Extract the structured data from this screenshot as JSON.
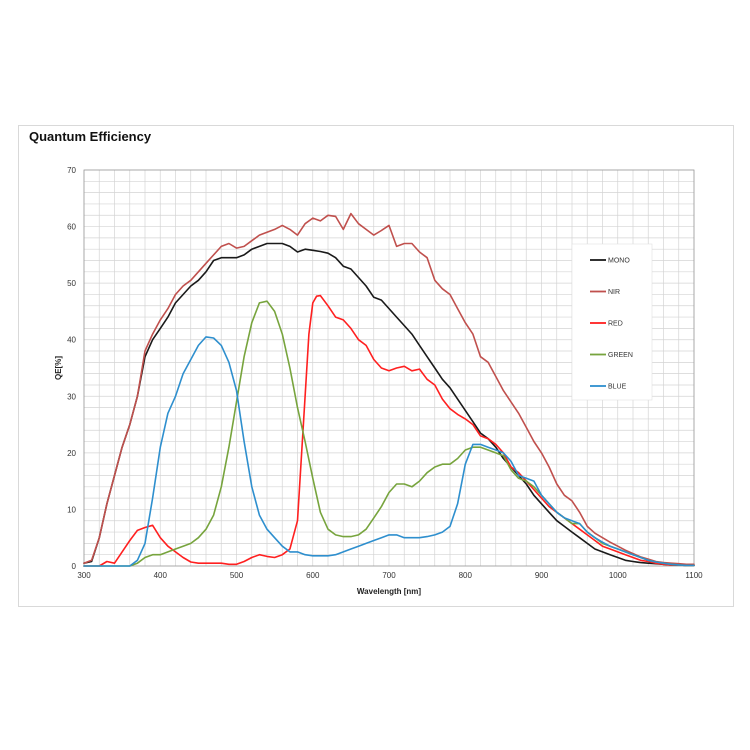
{
  "chart_data": {
    "type": "line",
    "title": "Quantum Efficiency",
    "xlabel": "Wavelength [nm]",
    "ylabel": "QE[%]",
    "xlim": [
      300,
      1100
    ],
    "ylim": [
      0,
      70
    ],
    "xticks": [
      300,
      400,
      500,
      600,
      700,
      800,
      900,
      1000,
      1100
    ],
    "yticks": [
      0,
      10,
      20,
      30,
      40,
      50,
      60,
      70
    ],
    "grid": true,
    "legend_position": "right",
    "series": [
      {
        "name": "MONO",
        "color": "#1a1a1a",
        "x": [
          300,
          310,
          320,
          330,
          340,
          350,
          360,
          370,
          380,
          390,
          400,
          410,
          420,
          430,
          440,
          450,
          460,
          470,
          480,
          490,
          500,
          510,
          520,
          530,
          540,
          550,
          560,
          570,
          580,
          590,
          600,
          610,
          620,
          630,
          640,
          650,
          660,
          670,
          680,
          690,
          700,
          710,
          720,
          730,
          740,
          750,
          760,
          770,
          780,
          790,
          800,
          810,
          820,
          830,
          840,
          850,
          860,
          870,
          880,
          890,
          900,
          910,
          920,
          930,
          940,
          950,
          960,
          970,
          980,
          990,
          1000,
          1010,
          1020,
          1030,
          1040,
          1050,
          1060,
          1070,
          1080,
          1090,
          1100
        ],
        "values": [
          0.5,
          0.8,
          5,
          11,
          16,
          21,
          25,
          30,
          37,
          40,
          42,
          44,
          46.5,
          48,
          49.5,
          50.5,
          52,
          54,
          54.5,
          54.5,
          54.5,
          55,
          56,
          56.5,
          57,
          57,
          57,
          56.5,
          55.5,
          56,
          55.8,
          55.6,
          55.3,
          54.5,
          53,
          52.5,
          51,
          49.5,
          47.5,
          47,
          45.5,
          44,
          42.5,
          41,
          39,
          37,
          35,
          33,
          31.5,
          29.5,
          27.5,
          25.5,
          23.5,
          22.5,
          21,
          19,
          17.5,
          16,
          14.5,
          12.5,
          11,
          9.5,
          8,
          7,
          6,
          5,
          4,
          3,
          2.5,
          2,
          1.5,
          1,
          0.8,
          0.6,
          0.5,
          0.4,
          0.3,
          0.2,
          0.2,
          0.1,
          0.1
        ]
      },
      {
        "name": "NIR",
        "color": "#c0504d",
        "x": [
          300,
          310,
          320,
          330,
          340,
          350,
          360,
          370,
          380,
          390,
          400,
          410,
          420,
          430,
          440,
          450,
          460,
          470,
          480,
          490,
          500,
          510,
          520,
          530,
          540,
          550,
          560,
          570,
          580,
          590,
          600,
          610,
          620,
          630,
          640,
          650,
          660,
          670,
          680,
          690,
          700,
          710,
          720,
          730,
          740,
          750,
          760,
          770,
          780,
          790,
          800,
          810,
          820,
          830,
          840,
          850,
          860,
          870,
          880,
          890,
          900,
          910,
          920,
          930,
          940,
          950,
          960,
          970,
          980,
          990,
          1000,
          1010,
          1020,
          1030,
          1040,
          1050,
          1060,
          1070,
          1080,
          1090,
          1100
        ],
        "values": [
          0.5,
          1,
          5,
          11,
          16,
          21,
          25,
          30,
          38,
          41,
          43.5,
          45.5,
          48,
          49.5,
          50.5,
          52,
          53.5,
          55,
          56.5,
          57,
          56.2,
          56.5,
          57.5,
          58.5,
          59,
          59.5,
          60.2,
          59.5,
          58.5,
          60.5,
          61.5,
          61,
          62,
          61.8,
          59.5,
          62.3,
          60.5,
          59.5,
          58.5,
          59.3,
          60.2,
          56.5,
          57,
          57,
          55.5,
          54.5,
          50.5,
          49,
          48,
          45.5,
          43,
          41,
          37,
          36,
          33.5,
          31,
          29,
          27,
          24.5,
          22,
          20,
          17.5,
          14.5,
          12.5,
          11.5,
          9.5,
          7,
          5.8,
          5,
          4.2,
          3.5,
          2.8,
          2.2,
          1.6,
          1.2,
          0.8,
          0.6,
          0.5,
          0.4,
          0.3,
          0.3
        ]
      },
      {
        "name": "RED",
        "color": "#ff2020",
        "x": [
          300,
          310,
          320,
          330,
          340,
          350,
          360,
          370,
          380,
          390,
          400,
          410,
          420,
          430,
          440,
          450,
          460,
          470,
          480,
          490,
          500,
          510,
          520,
          530,
          540,
          550,
          560,
          570,
          580,
          590,
          595,
          600,
          605,
          610,
          620,
          630,
          640,
          650,
          660,
          670,
          680,
          690,
          700,
          710,
          720,
          730,
          740,
          750,
          760,
          770,
          780,
          790,
          800,
          810,
          820,
          830,
          840,
          850,
          860,
          870,
          880,
          890,
          900,
          910,
          920,
          930,
          940,
          950,
          960,
          970,
          980,
          990,
          1000,
          1010,
          1020,
          1030,
          1040,
          1050,
          1060,
          1070,
          1080,
          1090,
          1100
        ],
        "values": [
          0,
          0,
          0,
          0.8,
          0.5,
          2.5,
          4.5,
          6.3,
          6.8,
          7.2,
          5,
          3.5,
          2.5,
          1.5,
          0.7,
          0.5,
          0.5,
          0.5,
          0.5,
          0.3,
          0.3,
          0.8,
          1.5,
          2,
          1.7,
          1.5,
          2,
          3,
          8,
          30,
          41,
          46.5,
          47.7,
          47.8,
          46,
          44,
          43.5,
          42,
          40,
          39,
          36.5,
          35,
          34.5,
          35,
          35.3,
          34.5,
          34.8,
          33,
          32,
          29.5,
          27.8,
          26.8,
          26,
          25,
          23,
          22.5,
          21.5,
          20,
          17.5,
          16.5,
          15,
          13.5,
          12,
          10.5,
          9.5,
          8.5,
          7.5,
          6.5,
          5.5,
          4.5,
          3.5,
          3,
          2.5,
          2,
          1.5,
          1,
          0.8,
          0.5,
          0.3,
          0.2,
          0.2,
          0.1,
          0.1
        ]
      },
      {
        "name": "GREEN",
        "color": "#77a43d",
        "x": [
          300,
          310,
          320,
          330,
          340,
          350,
          360,
          370,
          380,
          390,
          400,
          410,
          420,
          430,
          440,
          450,
          460,
          470,
          480,
          490,
          500,
          510,
          520,
          530,
          540,
          550,
          560,
          570,
          580,
          590,
          600,
          610,
          620,
          630,
          640,
          650,
          660,
          670,
          680,
          690,
          700,
          710,
          720,
          730,
          740,
          750,
          760,
          770,
          780,
          790,
          800,
          810,
          820,
          830,
          840,
          850,
          860,
          870,
          880,
          890,
          900,
          910,
          920,
          930,
          940,
          950,
          960,
          970,
          980,
          990,
          1000,
          1010,
          1020,
          1030,
          1040,
          1050,
          1060,
          1070,
          1080,
          1090,
          1100
        ],
        "values": [
          0,
          0,
          0,
          0,
          0,
          0,
          0,
          0.5,
          1.5,
          2,
          2,
          2.5,
          3,
          3.5,
          4,
          5,
          6.5,
          9,
          14,
          21,
          29,
          37,
          43,
          46.5,
          46.8,
          45,
          41,
          35,
          28,
          22,
          15.5,
          9.5,
          6.5,
          5.5,
          5.2,
          5.2,
          5.5,
          6.5,
          8.5,
          10.5,
          13,
          14.5,
          14.5,
          14,
          15,
          16.5,
          17.5,
          18,
          18,
          19,
          20.5,
          21,
          21,
          20.5,
          20,
          19.5,
          17,
          15.5,
          15,
          14,
          12.5,
          11,
          9.5,
          8.5,
          7.5,
          7.5,
          6,
          5,
          4,
          3.5,
          3,
          2.5,
          2,
          1.5,
          1,
          0.7,
          0.5,
          0.3,
          0.2,
          0.1,
          0.1
        ]
      },
      {
        "name": "BLUE",
        "color": "#2e8fce",
        "x": [
          300,
          310,
          320,
          330,
          340,
          350,
          360,
          370,
          380,
          390,
          400,
          410,
          420,
          430,
          440,
          450,
          460,
          470,
          480,
          490,
          500,
          510,
          520,
          530,
          540,
          550,
          560,
          570,
          580,
          590,
          600,
          610,
          620,
          630,
          640,
          650,
          660,
          670,
          680,
          690,
          700,
          710,
          720,
          730,
          740,
          750,
          760,
          770,
          780,
          790,
          800,
          810,
          820,
          830,
          840,
          850,
          860,
          870,
          880,
          890,
          900,
          910,
          920,
          930,
          940,
          950,
          960,
          970,
          980,
          990,
          1000,
          1010,
          1020,
          1030,
          1040,
          1050,
          1060,
          1070,
          1080,
          1090,
          1100
        ],
        "values": [
          0,
          0,
          0,
          0,
          0,
          0,
          0,
          1,
          4,
          12,
          21,
          27,
          30,
          34,
          36.5,
          39,
          40.5,
          40.3,
          39,
          36,
          31,
          22,
          14,
          9,
          6.5,
          5,
          3.5,
          2.5,
          2.5,
          2,
          1.8,
          1.8,
          1.8,
          2,
          2.5,
          3,
          3.5,
          4,
          4.5,
          5,
          5.5,
          5.5,
          5,
          5,
          5,
          5.2,
          5.5,
          6,
          7,
          11,
          18,
          21.5,
          21.5,
          21,
          20.5,
          20,
          18.5,
          16,
          15.5,
          15,
          12.5,
          11,
          9.5,
          8.5,
          8,
          7.5,
          6,
          5,
          4.2,
          3.5,
          3,
          2.5,
          2,
          1.5,
          1,
          0.7,
          0.5,
          0.3,
          0.2,
          0.1,
          0.1
        ]
      }
    ]
  }
}
